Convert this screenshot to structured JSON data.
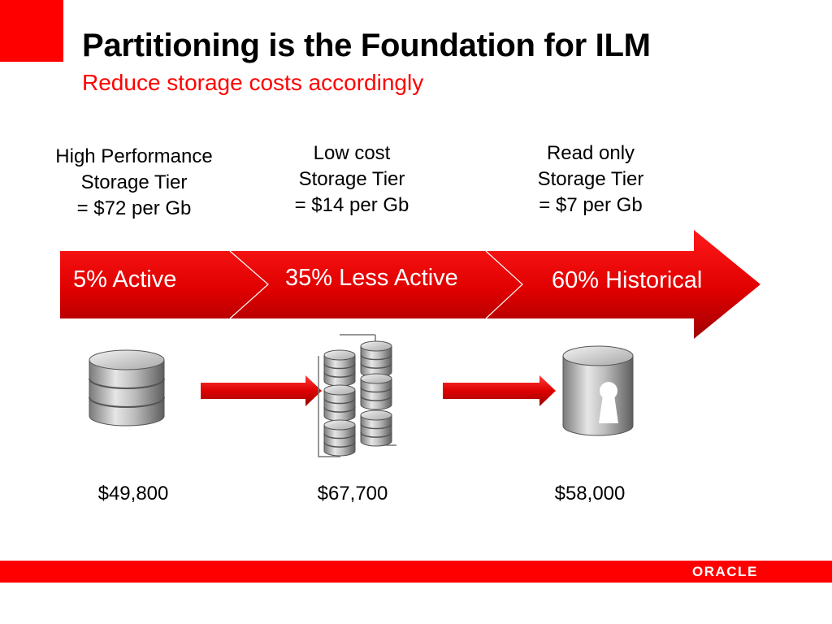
{
  "slide": {
    "title": "Partitioning is the Foundation for ILM",
    "subtitle": "Reduce storage costs accordingly"
  },
  "tiers": [
    {
      "line1": "High Performance",
      "line2": "Storage Tier",
      "line3": "= $72 per Gb"
    },
    {
      "line1": "Low cost",
      "line2": "Storage Tier",
      "line3": "= $14 per Gb"
    },
    {
      "line1": "Read only",
      "line2": "Storage Tier",
      "line3": "= $7 per Gb"
    }
  ],
  "segments": [
    {
      "label": "5% Active"
    },
    {
      "label": "35% Less Active"
    },
    {
      "label": "60% Historical"
    }
  ],
  "costs": [
    "$49,800",
    "$67,700",
    "$58,000"
  ],
  "icons": [
    "database-icon",
    "disk-array-icon",
    "locked-database-icon",
    "right-arrow-icon"
  ],
  "footer": {
    "logo": "ORACLE"
  },
  "colors": {
    "accent": "#ff0000",
    "arrow_dark": "#b00000",
    "text": "#000000"
  }
}
